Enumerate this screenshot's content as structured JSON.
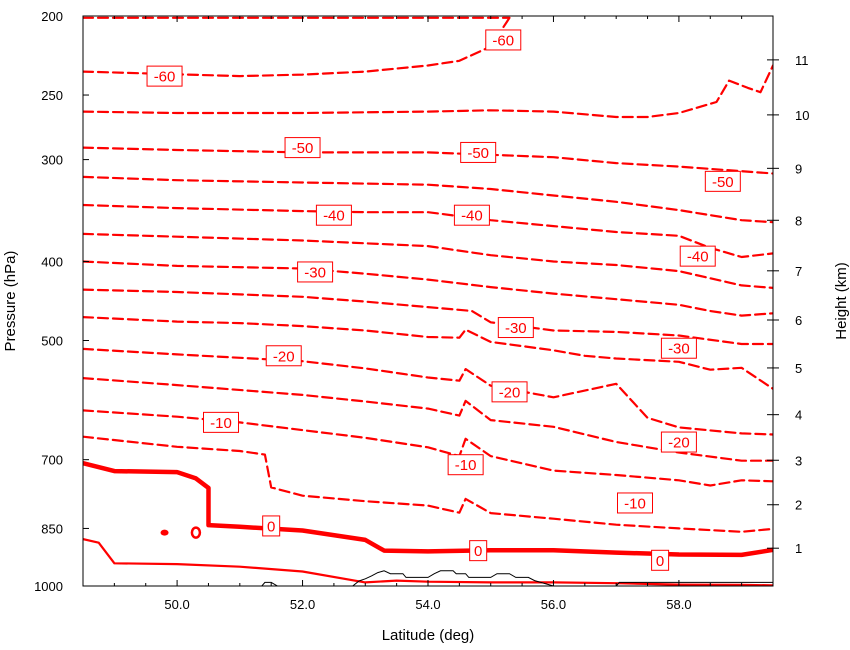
{
  "chart_data": {
    "type": "contour",
    "xlabel": "Latitude (deg)",
    "ylabel": "Pressure (hPa)",
    "y2label": "Height (km)",
    "xlim": [
      48.5,
      59.5
    ],
    "ylim": [
      1000,
      200
    ],
    "y_scale": "log",
    "x_ticks": [
      50.0,
      52.0,
      54.0,
      56.0,
      58.0
    ],
    "x_tick_labels": [
      "50.0",
      "52.0",
      "54.0",
      "56.0",
      "58.0"
    ],
    "y_ticks": [
      200,
      250,
      300,
      400,
      500,
      700,
      850,
      1000
    ],
    "y_tick_labels": [
      "200",
      "250",
      "300",
      "400",
      "500",
      "700",
      "850",
      "1000"
    ],
    "y2_ticks_km": [
      1,
      2,
      3,
      4,
      5,
      6,
      7,
      8,
      9,
      10,
      11
    ],
    "y2_tick_labels": [
      "1",
      "2",
      "3",
      "4",
      "5",
      "6",
      "7",
      "8",
      "9",
      "10",
      "11"
    ],
    "line_color": "#ff0000",
    "label_border_color": "#ff0000",
    "contour_interval": 5,
    "grid": false,
    "contours": [
      {
        "level": -60,
        "style": "dashed",
        "lat": [
          48.5,
          52.0,
          54.0,
          55.0,
          55.3
        ],
        "p": [
          201,
          201,
          201,
          201,
          201
        ]
      },
      {
        "level": -60,
        "style": "dashed",
        "lat": [
          48.5,
          51.0,
          52.0,
          53.0,
          54.0,
          54.5,
          55.0,
          55.3
        ],
        "p": [
          234,
          237,
          236,
          234,
          230,
          227,
          218,
          201
        ]
      },
      {
        "level": -55,
        "style": "dashed",
        "lat": [
          48.5,
          50.0,
          52.0,
          54.0,
          55.0,
          56.0,
          57.0,
          57.5,
          58.0,
          58.6,
          58.8,
          59.1,
          59.3,
          59.5
        ],
        "p": [
          262,
          263,
          263,
          262,
          261,
          262,
          266,
          266,
          263,
          255,
          240,
          245,
          248,
          230
        ]
      },
      {
        "level": -50,
        "style": "dashed",
        "lat": [
          48.5,
          50.0,
          52.0,
          54.0,
          56.0,
          57.0,
          58.0,
          59.5
        ],
        "p": [
          290,
          292,
          294,
          294,
          298,
          303,
          306,
          312
        ]
      },
      {
        "level": -50,
        "style": "dashed",
        "lat": [
          48.5,
          50.0,
          52.0,
          54.0,
          55.0,
          56.0,
          57.0,
          58.0,
          59.0,
          59.5
        ],
        "p": [
          315,
          318,
          320,
          322,
          326,
          332,
          338,
          346,
          356,
          358
        ]
      },
      {
        "level": -45,
        "style": "dashed",
        "lat": [
          48.5,
          50.0,
          52.0,
          53.0,
          54.0,
          55.0,
          56.0,
          57.0,
          58.0,
          58.5,
          59.0,
          59.5
        ],
        "p": [
          341,
          344,
          347,
          348,
          348,
          356,
          362,
          368,
          372,
          385,
          395,
          391
        ]
      },
      {
        "level": -40,
        "style": "dashed",
        "lat": [
          48.5,
          50.0,
          52.0,
          53.0,
          54.0,
          55.0,
          56.0,
          57.0,
          58.0,
          59.0,
          59.5
        ],
        "p": [
          370,
          373,
          377,
          380,
          383,
          393,
          400,
          404,
          411,
          428,
          431
        ]
      },
      {
        "level": -35,
        "style": "dashed",
        "lat": [
          48.5,
          50.0,
          52.0,
          53.0,
          54.0,
          55.0,
          56.0,
          57.0,
          58.0,
          58.5,
          59.0,
          59.5
        ],
        "p": [
          400,
          405,
          408,
          414,
          421,
          430,
          438,
          445,
          452,
          460,
          466,
          463
        ]
      },
      {
        "level": -30,
        "style": "dashed",
        "lat": [
          48.5,
          50.0,
          52.0,
          53.0,
          54.0,
          54.7,
          55.0,
          56.0,
          57.0,
          58.0,
          59.0,
          59.5
        ],
        "p": [
          433,
          436,
          442,
          448,
          455,
          460,
          475,
          486,
          488,
          493,
          505,
          505
        ]
      },
      {
        "level": -25,
        "style": "dashed",
        "lat": [
          48.5,
          50.0,
          51.0,
          52.0,
          53.0,
          54.0,
          54.5,
          54.6,
          55.0,
          56.0,
          56.5,
          57.0,
          58.0,
          58.5,
          59.0,
          59.5
        ],
        "p": [
          468,
          474,
          476,
          480,
          486,
          495,
          496,
          485,
          502,
          514,
          522,
          526,
          531,
          543,
          540,
          573
        ]
      },
      {
        "level": -20,
        "style": "dashed",
        "lat": [
          48.5,
          50.0,
          52.0,
          53.0,
          54.0,
          54.5,
          54.6,
          55.0,
          56.0,
          57.0,
          57.5,
          58.0,
          59.0,
          59.5
        ],
        "p": [
          512,
          520,
          530,
          541,
          555,
          560,
          542,
          568,
          587,
          565,
          622,
          639,
          650,
          652
        ]
      },
      {
        "level": -15,
        "style": "dashed",
        "lat": [
          48.5,
          50.0,
          52.0,
          53.0,
          54.0,
          54.5,
          54.6,
          55.0,
          56.0,
          57.0,
          58.0,
          59.0,
          59.5
        ],
        "p": [
          556,
          567,
          583,
          594,
          606,
          618,
          593,
          626,
          638,
          666,
          686,
          702,
          702
        ]
      },
      {
        "level": -10,
        "style": "dashed",
        "lat": [
          48.5,
          50.0,
          51.0,
          52.0,
          53.0,
          54.0,
          54.5,
          54.6,
          55.0,
          56.0,
          57.0,
          58.0,
          58.5,
          59.0,
          59.5
        ],
        "p": [
          609,
          620,
          630,
          644,
          658,
          676,
          693,
          660,
          693,
          722,
          731,
          742,
          753,
          742,
          744
        ]
      },
      {
        "level": -5,
        "style": "dashed",
        "lat": [
          48.5,
          50.0,
          51.0,
          51.4,
          51.5,
          52.0,
          53.0,
          54.0,
          54.5,
          54.6,
          55.0,
          56.0,
          57.0,
          58.0,
          59.0,
          59.5
        ],
        "p": [
          656,
          675,
          683,
          690,
          757,
          775,
          787,
          797,
          813,
          782,
          814,
          827,
          841,
          850,
          858,
          851
        ]
      },
      {
        "level": 0,
        "style": "thick",
        "lat": [
          48.5,
          49.0,
          50.0,
          50.3,
          50.5,
          50.5,
          51.0,
          52.0,
          53.0,
          53.3,
          54.0,
          55.0,
          56.0,
          57.0,
          58.0,
          59.0,
          59.5
        ],
        "p": [
          707,
          723,
          725,
          738,
          758,
          842,
          846,
          855,
          878,
          905,
          907,
          904,
          904,
          910,
          915,
          916,
          903
        ]
      },
      {
        "level": 0,
        "style": "solid",
        "lat": [
          48.5,
          48.75,
          49.0,
          50.0,
          51.0,
          52.0,
          53.0,
          53.5,
          54.0,
          55.0,
          56.0,
          57.0,
          58.0,
          59.0,
          59.5
        ],
        "p": [
          876,
          885,
          938,
          940,
          947,
          960,
          990,
          985,
          988,
          990,
          990,
          992,
          996,
          997,
          998
        ]
      }
    ],
    "contour_labels": [
      {
        "text": "-60",
        "lat": 55.2,
        "p": 214
      },
      {
        "text": "-60",
        "lat": 49.8,
        "p": 237
      },
      {
        "text": "-50",
        "lat": 52.0,
        "p": 290
      },
      {
        "text": "-50",
        "lat": 54.8,
        "p": 294
      },
      {
        "text": "-50",
        "lat": 58.7,
        "p": 319
      },
      {
        "text": "-40",
        "lat": 52.5,
        "p": 351
      },
      {
        "text": "-40",
        "lat": 54.7,
        "p": 351
      },
      {
        "text": "-40",
        "lat": 58.3,
        "p": 394
      },
      {
        "text": "-30",
        "lat": 52.2,
        "p": 412
      },
      {
        "text": "-30",
        "lat": 55.4,
        "p": 482
      },
      {
        "text": "-30",
        "lat": 58.0,
        "p": 511
      },
      {
        "text": "-20",
        "lat": 51.7,
        "p": 522
      },
      {
        "text": "-20",
        "lat": 55.3,
        "p": 578
      },
      {
        "text": "-20",
        "lat": 58.0,
        "p": 666
      },
      {
        "text": "-10",
        "lat": 50.7,
        "p": 630
      },
      {
        "text": "-10",
        "lat": 54.6,
        "p": 710
      },
      {
        "text": "-10",
        "lat": 57.3,
        "p": 791
      },
      {
        "text": "0",
        "lat": 51.5,
        "p": 844
      },
      {
        "text": "0",
        "lat": 54.8,
        "p": 905
      },
      {
        "text": "0",
        "lat": 57.7,
        "p": 930
      }
    ],
    "cold_blobs": [
      {
        "lat": 49.8,
        "p": 860,
        "style": "thick"
      },
      {
        "lat": 50.3,
        "p": 860,
        "style": "ring"
      }
    ],
    "terrain": {
      "color": "#000000",
      "lat": [
        48.5,
        51.35,
        51.4,
        51.5,
        51.6,
        52.8,
        52.9,
        53.0,
        53.1,
        53.2,
        53.3,
        53.4,
        53.6,
        53.65,
        54.0,
        54.1,
        54.2,
        54.4,
        54.45,
        54.6,
        54.65,
        55.0,
        55.1,
        55.3,
        55.4,
        55.6,
        55.7,
        56.0,
        57.0,
        57.05,
        57.8,
        57.85,
        59.5
      ],
      "p": [
        1000,
        1000,
        990,
        990,
        1000,
        1000,
        986,
        980,
        972,
        963,
        958,
        966,
        966,
        976,
        976,
        966,
        958,
        958,
        966,
        966,
        976,
        976,
        966,
        966,
        976,
        976,
        985,
        1000,
        1000,
        990,
        990,
        990,
        990
      ]
    }
  }
}
